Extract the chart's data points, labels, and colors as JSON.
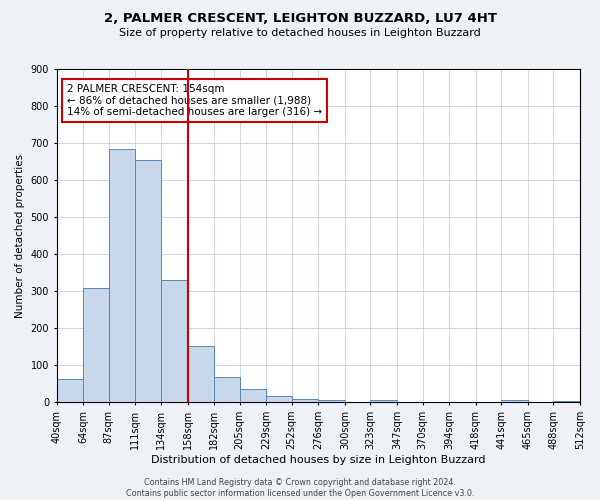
{
  "title_line1": "2, PALMER CRESCENT, LEIGHTON BUZZARD, LU7 4HT",
  "title_line2": "Size of property relative to detached houses in Leighton Buzzard",
  "bar_edges": [
    40,
    64,
    87,
    111,
    134,
    158,
    182,
    205,
    229,
    252,
    276,
    300,
    323,
    347,
    370,
    394,
    418,
    441,
    465,
    488,
    512
  ],
  "bar_heights": [
    63,
    310,
    685,
    653,
    330,
    153,
    68,
    35,
    18,
    8,
    5,
    0,
    5,
    0,
    0,
    0,
    0,
    5,
    0,
    3
  ],
  "bar_color": "#c8d8ea",
  "bar_edge_color": "#5588bb",
  "vline_x": 158,
  "vline_color": "#cc0000",
  "ylabel": "Number of detached properties",
  "xlabel": "Distribution of detached houses by size in Leighton Buzzard",
  "ylim": [
    0,
    900
  ],
  "yticks": [
    0,
    100,
    200,
    300,
    400,
    500,
    600,
    700,
    800,
    900
  ],
  "xtick_labels": [
    "40sqm",
    "64sqm",
    "87sqm",
    "111sqm",
    "134sqm",
    "158sqm",
    "182sqm",
    "205sqm",
    "229sqm",
    "252sqm",
    "276sqm",
    "300sqm",
    "323sqm",
    "347sqm",
    "370sqm",
    "394sqm",
    "418sqm",
    "441sqm",
    "465sqm",
    "488sqm",
    "512sqm"
  ],
  "annotation_title": "2 PALMER CRESCENT: 154sqm",
  "annotation_line2": "← 86% of detached houses are smaller (1,988)",
  "annotation_line3": "14% of semi-detached houses are larger (316) →",
  "annotation_box_color": "#cc0000",
  "footer_line1": "Contains HM Land Registry data © Crown copyright and database right 2024.",
  "footer_line2": "Contains public sector information licensed under the Open Government Licence v3.0.",
  "bg_color": "#eef2f7",
  "plot_bg_color": "#ffffff",
  "grid_color": "#b8c8d8"
}
